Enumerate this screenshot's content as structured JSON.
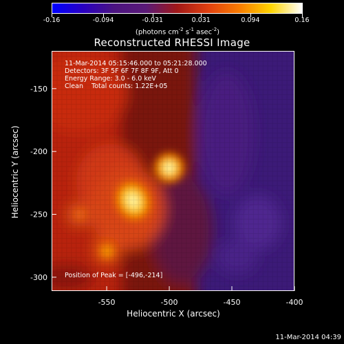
{
  "title": "Reconstructed RHESSI Image",
  "colorbar": {
    "tick_labels": [
      "-0.16",
      "-0.094",
      "-0.031",
      "0.031",
      "0.094",
      "0.16"
    ],
    "ticks": [
      -0.16,
      -0.094,
      -0.031,
      0.031,
      0.094,
      0.16
    ],
    "range": [
      -0.16,
      0.16
    ],
    "units_prefix": "(photons cm",
    "units_exp1": "-2",
    "units_mid1": " s",
    "units_exp2": "-1",
    "units_mid2": " asec",
    "units_exp3": "-2",
    "units_suffix": ")",
    "colors": [
      "#0000ff",
      "#2a00c0",
      "#4c1480",
      "#5a1a78",
      "#a01818",
      "#e04010",
      "#f87c00",
      "#ffd400",
      "#ffffff"
    ]
  },
  "info": {
    "line1": "11-Mar-2014 05:15:46.000 to 05:21:28.000",
    "line2": "Detectors: 3F 5F 6F 7F 8F 9F, Att 0",
    "line3": "Energy Range: 3.0 - 6.0 keV",
    "line4": "Clean    Total counts: 1.22E+05"
  },
  "peak_text": "Position of Peak = [-496,-214]",
  "x_axis": {
    "label": "Heliocentric X (arcsec)",
    "ticks": [
      -550,
      -500,
      -450,
      -400
    ],
    "tick_labels": [
      "-550",
      "-500",
      "-450",
      "-400"
    ],
    "range": [
      -594,
      -400
    ]
  },
  "y_axis": {
    "label": "Heliocentric Y (arcsec)",
    "ticks": [
      -150,
      -200,
      -250,
      -300
    ],
    "tick_labels": [
      "-150",
      "-200",
      "-250",
      "-300"
    ],
    "range": [
      -311,
      -120
    ]
  },
  "peak_position": [
    -496,
    -214
  ],
  "timestamp": "11-Mar-2014 04:39"
}
